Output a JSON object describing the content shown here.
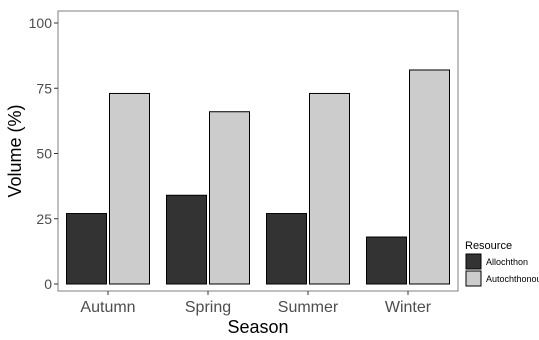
{
  "chart_data": {
    "type": "bar",
    "xlabel": "Season",
    "ylabel": "Volume (%)",
    "categories": [
      "Autumn",
      "Spring",
      "Summer",
      "Winter"
    ],
    "ylim": [
      0,
      100
    ],
    "yticks": [
      "0",
      "25",
      "50",
      "75",
      "100"
    ],
    "grid": false,
    "legend": {
      "title": "Resource",
      "position": "right"
    },
    "series": [
      {
        "name": "Allochthon",
        "color": "#333333",
        "values": [
          27,
          34,
          27,
          18
        ]
      },
      {
        "name": "Autochthonous",
        "color": "#cccccc",
        "values": [
          73,
          66,
          73,
          82
        ]
      }
    ]
  }
}
